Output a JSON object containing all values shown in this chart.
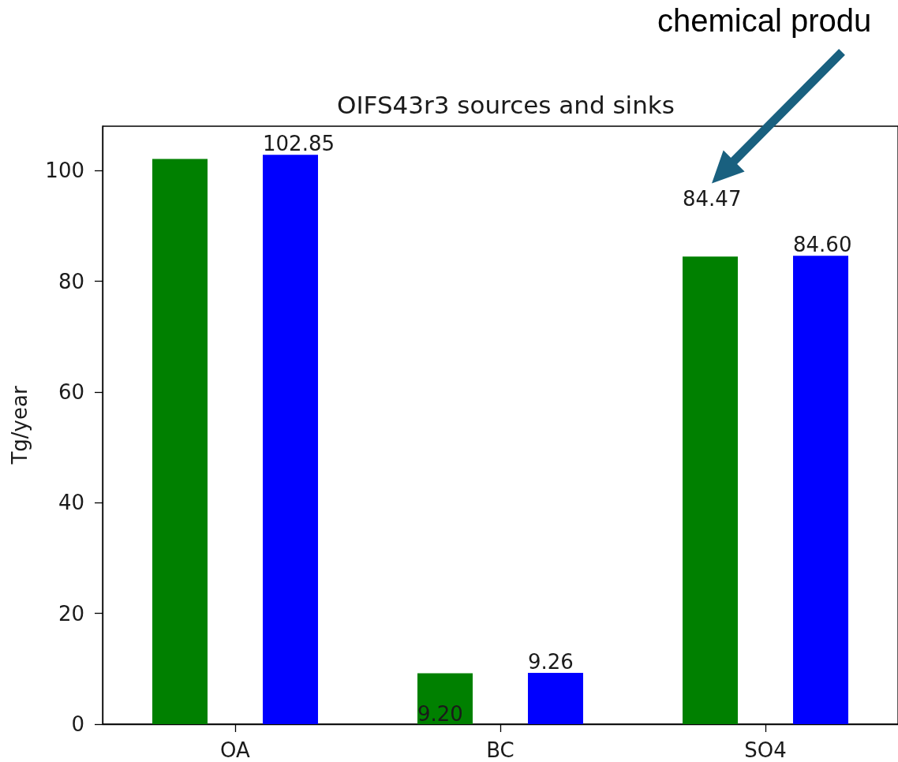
{
  "chart_data": {
    "type": "bar",
    "title": "OIFS43r3 sources and sinks",
    "ylabel": "Tg/year",
    "categories": [
      "OA",
      "BC",
      "SO4"
    ],
    "series": [
      {
        "color": "#008000",
        "values": [
          102.1,
          9.2,
          84.47
        ],
        "value_labels": [
          null,
          "9.20",
          "84.47"
        ]
      },
      {
        "color": "#0000ff",
        "values": [
          102.85,
          9.26,
          84.6
        ],
        "value_labels": [
          "102.85",
          "9.26",
          "84.60"
        ]
      }
    ],
    "ylim": [
      0,
      108
    ],
    "yticks": [
      0,
      20,
      40,
      60,
      80,
      100
    ],
    "grid": false,
    "annotations": [
      "chemical produ"
    ]
  }
}
